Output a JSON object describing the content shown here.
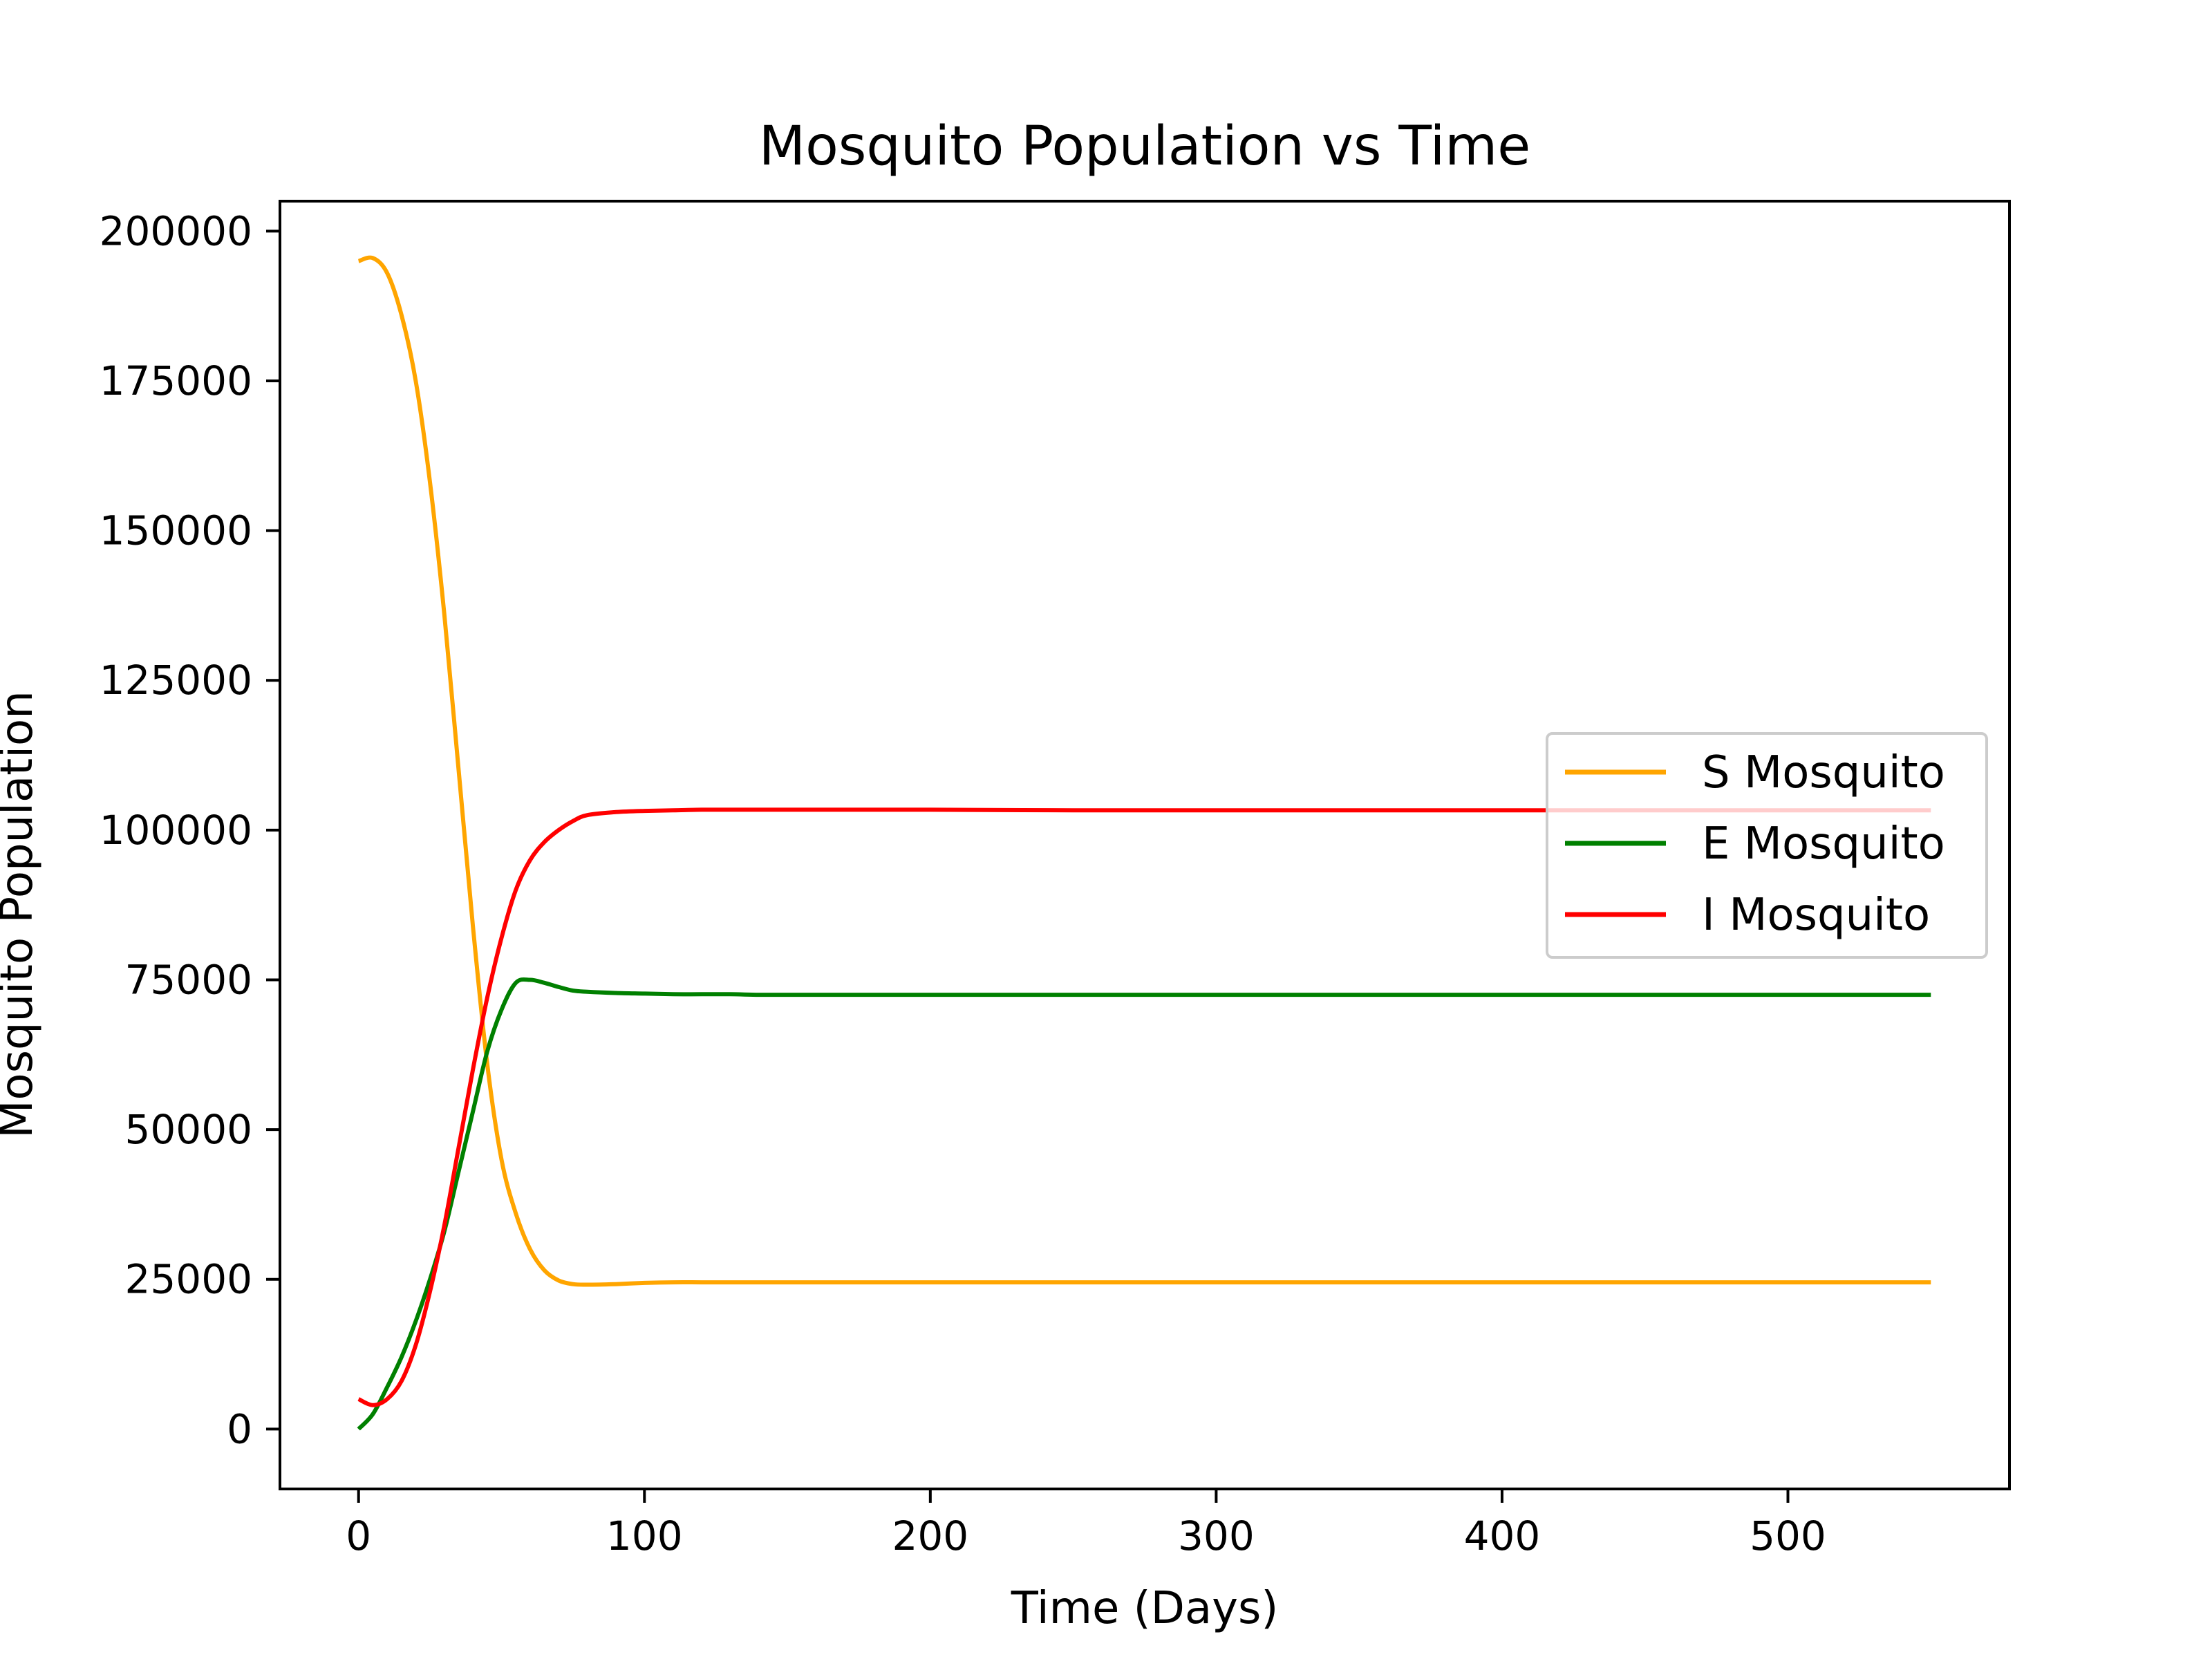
{
  "chart_data": {
    "type": "line",
    "title": "Mosquito Population vs Time",
    "xlabel": "Time (Days)",
    "ylabel": "Mosquito Population",
    "xlim": [
      -27.5,
      577.5
    ],
    "ylim": [
      -10000,
      205000
    ],
    "xticks": [
      0,
      100,
      200,
      300,
      400,
      500
    ],
    "xtick_labels": [
      "0",
      "100",
      "200",
      "300",
      "400",
      "500"
    ],
    "yticks": [
      0,
      25000,
      50000,
      75000,
      100000,
      125000,
      150000,
      175000,
      200000
    ],
    "ytick_labels": [
      "0",
      "25000",
      "50000",
      "75000",
      "100000",
      "125000",
      "150000",
      "175000",
      "200000"
    ],
    "grid": false,
    "legend_position": "center-right",
    "x": [
      0,
      5,
      10,
      15,
      20,
      25,
      30,
      35,
      40,
      45,
      50,
      55,
      60,
      65,
      70,
      75,
      80,
      90,
      100,
      110,
      120,
      130,
      140,
      150,
      175,
      200,
      250,
      300,
      350,
      400,
      450,
      500,
      550
    ],
    "series": [
      {
        "name": "S Mosquito",
        "color": "#ffa500",
        "values": [
          195000,
          195500,
          193000,
          186000,
          175000,
          158000,
          136000,
          110000,
          84000,
          61000,
          45000,
          36000,
          30000,
          26500,
          24800,
          24200,
          24100,
          24200,
          24400,
          24500,
          24500,
          24500,
          24500,
          24500,
          24500,
          24500,
          24500,
          24500,
          24500,
          24500,
          24500,
          24500,
          24500
        ]
      },
      {
        "name": "E Mosquito",
        "color": "#008000",
        "values": [
          0,
          2500,
          7000,
          12000,
          18000,
          25000,
          33000,
          43000,
          53000,
          63000,
          70000,
          74500,
          75000,
          74500,
          73800,
          73200,
          73000,
          72800,
          72700,
          72600,
          72600,
          72600,
          72500,
          72500,
          72500,
          72500,
          72500,
          72500,
          72500,
          72500,
          72500,
          72500,
          72500
        ]
      },
      {
        "name": "I Mosquito",
        "color": "#ff0000",
        "values": [
          5000,
          4000,
          5000,
          8000,
          14000,
          23000,
          34000,
          47000,
          60000,
          72000,
          82000,
          90000,
          95000,
          98000,
          100000,
          101500,
          102500,
          103000,
          103200,
          103300,
          103400,
          103400,
          103400,
          103400,
          103400,
          103400,
          103300,
          103300,
          103300,
          103300,
          103300,
          103300,
          103300
        ]
      }
    ]
  }
}
